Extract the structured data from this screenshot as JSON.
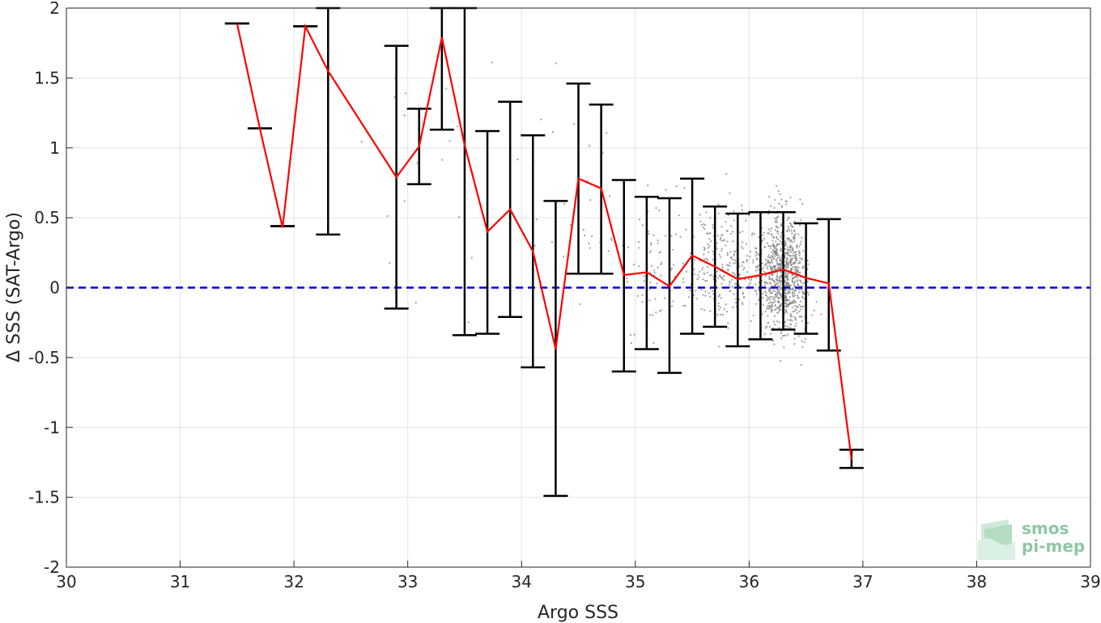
{
  "chart_data": {
    "type": "line",
    "title": "",
    "xlabel": "Argo SSS",
    "ylabel": "Δ SSS (SAT-Argo)",
    "xlim": [
      30,
      39
    ],
    "ylim": [
      -2,
      2
    ],
    "xticks": [
      30,
      31,
      32,
      33,
      34,
      35,
      36,
      37,
      38,
      39
    ],
    "yticks": [
      2,
      1.5,
      1,
      0.5,
      0,
      -0.5,
      -1,
      -1.5,
      -2
    ],
    "grid": true,
    "reference_line": {
      "y": 0,
      "style": "dashed",
      "color": "#0000ee"
    },
    "series": [
      {
        "kind": "mean-with-errorbars",
        "color": "#ff0000",
        "x": [
          31.5,
          31.7,
          31.9,
          32.1,
          32.3,
          32.9,
          33.1,
          33.3,
          33.5,
          33.7,
          33.9,
          34.1,
          34.3,
          34.5,
          34.7,
          34.9,
          35.1,
          35.3,
          35.5,
          35.7,
          35.9,
          36.1,
          36.3,
          36.5,
          36.7,
          36.9
        ],
        "mean": [
          1.89,
          1.14,
          0.43,
          1.87,
          1.55,
          0.79,
          1.01,
          1.79,
          1.02,
          0.4,
          0.56,
          0.26,
          -0.44,
          0.78,
          0.71,
          0.09,
          0.11,
          0.01,
          0.23,
          0.15,
          0.06,
          0.09,
          0.13,
          0.07,
          0.03,
          -1.23
        ],
        "upper": [
          1.89,
          1.14,
          0.44,
          1.87,
          2.0,
          1.73,
          1.28,
          2.0,
          2.0,
          1.12,
          1.33,
          1.09,
          0.62,
          1.46,
          1.31,
          0.77,
          0.65,
          0.64,
          0.78,
          0.58,
          0.53,
          0.54,
          0.54,
          0.46,
          0.49,
          -1.16
        ],
        "lower": [
          1.89,
          1.14,
          0.44,
          1.87,
          0.38,
          -0.15,
          0.74,
          1.13,
          -0.34,
          -0.33,
          -0.21,
          -0.57,
          -1.49,
          0.1,
          0.1,
          -0.6,
          -0.44,
          -0.61,
          -0.33,
          -0.28,
          -0.42,
          -0.37,
          -0.3,
          -0.33,
          -0.45,
          -1.29
        ]
      },
      {
        "kind": "scatter",
        "color": "#808080",
        "description_points_estimated": true
      }
    ]
  },
  "logo": {
    "line1": "smos",
    "line2": "pi-mep"
  }
}
